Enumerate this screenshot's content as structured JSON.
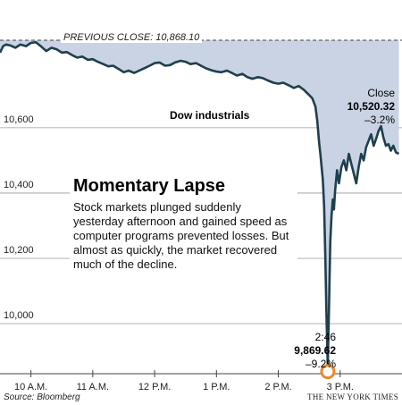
{
  "chart_data": {
    "type": "area",
    "title": "Momentary Lapse",
    "description": "Stock markets plunged suddenly yesterday afternoon and gained speed as computer programs prevented losses. But almost as quickly, the market recovered much of the decline.",
    "series_name": "Dow industrials",
    "previous_close": {
      "label": "PREVIOUS CLOSE: 10,868.10",
      "value": 10868.1
    },
    "y_ticks": [
      {
        "label": "10,600",
        "value": 10600
      },
      {
        "label": "10,400",
        "value": 10400
      },
      {
        "label": "10,200",
        "value": 10200
      },
      {
        "label": "10,000",
        "value": 10000
      }
    ],
    "x_ticks": [
      {
        "label": "10 A.M.",
        "hour": 10
      },
      {
        "label": "11 A.M.",
        "hour": 11
      },
      {
        "label": "12 P.M.",
        "hour": 12
      },
      {
        "label": "1 P.M.",
        "hour": 13
      },
      {
        "label": "2 P.M.",
        "hour": 14
      },
      {
        "label": "3 P.M.",
        "hour": 15
      }
    ],
    "xlim_hours": [
      9.5,
      16.0
    ],
    "ylim": [
      9830,
      10900
    ],
    "points": [
      [
        9.5,
        10830
      ],
      [
        9.55,
        10850
      ],
      [
        9.6,
        10855
      ],
      [
        9.67,
        10852
      ],
      [
        9.75,
        10845
      ],
      [
        9.83,
        10855
      ],
      [
        9.92,
        10850
      ],
      [
        10.0,
        10860
      ],
      [
        10.08,
        10862
      ],
      [
        10.17,
        10848
      ],
      [
        10.25,
        10835
      ],
      [
        10.33,
        10845
      ],
      [
        10.42,
        10840
      ],
      [
        10.5,
        10830
      ],
      [
        10.58,
        10832
      ],
      [
        10.67,
        10822
      ],
      [
        10.75,
        10815
      ],
      [
        10.83,
        10818
      ],
      [
        10.92,
        10808
      ],
      [
        11.0,
        10810
      ],
      [
        11.08,
        10802
      ],
      [
        11.17,
        10795
      ],
      [
        11.25,
        10788
      ],
      [
        11.33,
        10790
      ],
      [
        11.42,
        10780
      ],
      [
        11.5,
        10770
      ],
      [
        11.58,
        10775
      ],
      [
        11.67,
        10768
      ],
      [
        11.75,
        10775
      ],
      [
        11.83,
        10782
      ],
      [
        11.92,
        10790
      ],
      [
        12.0,
        10798
      ],
      [
        12.08,
        10800
      ],
      [
        12.17,
        10790
      ],
      [
        12.25,
        10792
      ],
      [
        12.33,
        10800
      ],
      [
        12.42,
        10805
      ],
      [
        12.5,
        10802
      ],
      [
        12.58,
        10795
      ],
      [
        12.67,
        10798
      ],
      [
        12.75,
        10790
      ],
      [
        12.83,
        10782
      ],
      [
        12.92,
        10776
      ],
      [
        13.0,
        10772
      ],
      [
        13.08,
        10770
      ],
      [
        13.17,
        10775
      ],
      [
        13.25,
        10768
      ],
      [
        13.33,
        10760
      ],
      [
        13.42,
        10765
      ],
      [
        13.5,
        10755
      ],
      [
        13.58,
        10750
      ],
      [
        13.67,
        10755
      ],
      [
        13.75,
        10752
      ],
      [
        13.83,
        10745
      ],
      [
        13.92,
        10738
      ],
      [
        14.0,
        10735
      ],
      [
        14.08,
        10738
      ],
      [
        14.17,
        10730
      ],
      [
        14.25,
        10722
      ],
      [
        14.33,
        10728
      ],
      [
        14.42,
        10715
      ],
      [
        14.5,
        10700
      ],
      [
        14.55,
        10690
      ],
      [
        14.6,
        10665
      ],
      [
        14.63,
        10620
      ],
      [
        14.66,
        10555
      ],
      [
        14.68,
        10520
      ],
      [
        14.7,
        10480
      ],
      [
        14.72,
        10440
      ],
      [
        14.74,
        10360
      ],
      [
        14.76,
        10200
      ],
      [
        14.78,
        10020
      ],
      [
        14.8,
        9869.62
      ],
      [
        14.82,
        10050
      ],
      [
        14.84,
        10250
      ],
      [
        14.86,
        10330
      ],
      [
        14.88,
        10380
      ],
      [
        14.9,
        10350
      ],
      [
        14.92,
        10410
      ],
      [
        14.95,
        10470
      ],
      [
        14.98,
        10430
      ],
      [
        15.02,
        10480
      ],
      [
        15.06,
        10500
      ],
      [
        15.1,
        10470
      ],
      [
        15.14,
        10520
      ],
      [
        15.18,
        10490
      ],
      [
        15.22,
        10460
      ],
      [
        15.26,
        10430
      ],
      [
        15.3,
        10480
      ],
      [
        15.34,
        10520
      ],
      [
        15.38,
        10500
      ],
      [
        15.42,
        10540
      ],
      [
        15.46,
        10560
      ],
      [
        15.5,
        10580
      ],
      [
        15.54,
        10545
      ],
      [
        15.58,
        10565
      ],
      [
        15.62,
        10590
      ],
      [
        15.66,
        10605
      ],
      [
        15.7,
        10570
      ],
      [
        15.74,
        10545
      ],
      [
        15.78,
        10550
      ],
      [
        15.82,
        10530
      ],
      [
        15.86,
        10545
      ],
      [
        15.9,
        10525
      ],
      [
        15.95,
        10520.32
      ]
    ],
    "close": {
      "label": "Close",
      "value": "10,520.32",
      "change": "–3.2%"
    },
    "low": {
      "time": "2:46",
      "value": "9,869.62",
      "change": "–9.2%"
    },
    "colors": {
      "fill": "#c9d3e3",
      "line": "#1f3f4d",
      "marker": "#e8892f"
    }
  },
  "footer": {
    "source": "Source: Bloomberg",
    "credit": "THE NEW YORK TIMES"
  }
}
